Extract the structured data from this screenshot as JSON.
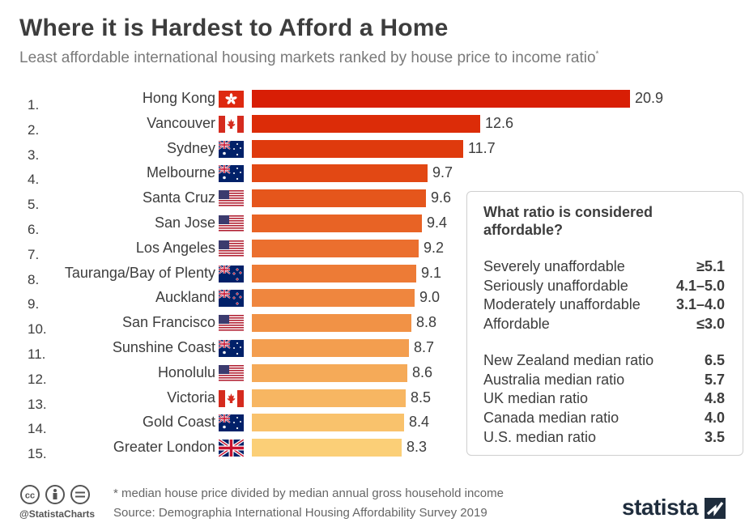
{
  "chart_data": {
    "type": "bar",
    "orientation": "horizontal",
    "title": "Where it is Hardest to Afford a Home",
    "subtitle": "Least affordable international housing markets ranked by house price to income ratio",
    "subtitle_mark": "*",
    "rows": [
      {
        "rank": "1.",
        "city": "Hong Kong",
        "flag": "hong-kong-flag-icon",
        "value": 20.9,
        "label": "20.9",
        "color": "#d81e05"
      },
      {
        "rank": "2.",
        "city": "Vancouver",
        "flag": "canada-flag-icon",
        "value": 12.6,
        "label": "12.6",
        "color": "#dc2c08"
      },
      {
        "rank": "3.",
        "city": "Sydney",
        "flag": "australia-flag-icon",
        "value": 11.7,
        "label": "11.7",
        "color": "#df3a0d"
      },
      {
        "rank": "4.",
        "city": "Melbourne",
        "flag": "australia-flag-icon",
        "value": 9.7,
        "label": "9.7",
        "color": "#e24814"
      },
      {
        "rank": "5.",
        "city": "Santa Cruz",
        "flag": "usa-flag-icon",
        "value": 9.6,
        "label": "9.6",
        "color": "#e5561c"
      },
      {
        "rank": "6.",
        "city": "San Jose",
        "flag": "usa-flag-icon",
        "value": 9.4,
        "label": "9.4",
        "color": "#e86325"
      },
      {
        "rank": "7.",
        "city": "Los Angeles",
        "flag": "usa-flag-icon",
        "value": 9.2,
        "label": "9.2",
        "color": "#eb6f2e"
      },
      {
        "rank": "8.",
        "city": "Tauranga/Bay of Plenty",
        "flag": "new-zealand-flag-icon",
        "value": 9.1,
        "label": "9.1",
        "color": "#ed7b36"
      },
      {
        "rank": "9.",
        "city": "Auckland",
        "flag": "new-zealand-flag-icon",
        "value": 9.0,
        "label": "9.0",
        "color": "#ef863e"
      },
      {
        "rank": "10.",
        "city": "San Francisco",
        "flag": "usa-flag-icon",
        "value": 8.8,
        "label": "8.8",
        "color": "#f19246"
      },
      {
        "rank": "11.",
        "city": "Sunshine Coast",
        "flag": "australia-flag-icon",
        "value": 8.7,
        "label": "8.7",
        "color": "#f39e4f"
      },
      {
        "rank": "12.",
        "city": "Honolulu",
        "flag": "usa-flag-icon",
        "value": 8.6,
        "label": "8.6",
        "color": "#f5aa58"
      },
      {
        "rank": "13.",
        "city": "Victoria",
        "flag": "canada-flag-icon",
        "value": 8.5,
        "label": "8.5",
        "color": "#f7b662"
      },
      {
        "rank": "14.",
        "city": "Gold Coast",
        "flag": "australia-flag-icon",
        "value": 8.4,
        "label": "8.4",
        "color": "#f9c26c"
      },
      {
        "rank": "15.",
        "city": "Greater London",
        "flag": "uk-flag-icon",
        "value": 8.3,
        "label": "8.3",
        "color": "#fbcf77"
      }
    ],
    "xlim": [
      0,
      20.9
    ]
  },
  "info_box": {
    "title": "What ratio is considered affordable?",
    "categories": [
      {
        "label": "Severely unaffordable",
        "value": "≥5.1"
      },
      {
        "label": "Seriously unaffordable",
        "value": "4.1–5.0"
      },
      {
        "label": "Moderately unaffordable",
        "value": "3.1–4.0"
      },
      {
        "label": "Affordable",
        "value": "≤3.0"
      }
    ],
    "medians": [
      {
        "label": "New Zealand median ratio",
        "value": "6.5"
      },
      {
        "label": "Australia median ratio",
        "value": "5.7"
      },
      {
        "label": "UK median ratio",
        "value": "4.8"
      },
      {
        "label": "Canada median ratio",
        "value": "4.0"
      },
      {
        "label": "U.S. median ratio",
        "value": "3.5"
      }
    ]
  },
  "footer": {
    "footnote": "* median house price divided by median annual gross household income",
    "source": "Source: Demographia International Housing Affordability Survey 2019",
    "handle": "@StatistaCharts",
    "brand": "statista"
  }
}
